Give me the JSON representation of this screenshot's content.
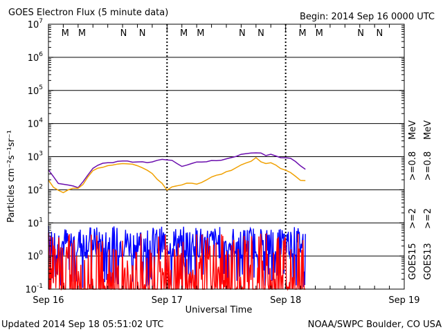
{
  "chart_data": {
    "type": "line",
    "title": "GOES Electron Flux (5 minute data)",
    "begin_label": "Begin: 2014 Sep 16 0000 UTC",
    "ylabel": "Particles cm⁻²s⁻¹sr⁻¹",
    "xlabel": "Universal Time",
    "updated": "Updated 2014 Sep 18 05:51:02 UTC",
    "credit": "NOAA/SWPC Boulder, CO USA",
    "y_scale": "log",
    "ylim": [
      0.1,
      10000000
    ],
    "xlim_hours": [
      0,
      72
    ],
    "x_tick_labels": [
      {
        "hour": 0,
        "label": "Sep 16"
      },
      {
        "hour": 24,
        "label": "Sep 17"
      },
      {
        "hour": 48,
        "label": "Sep 18"
      },
      {
        "hour": 72,
        "label": "Sep 19"
      }
    ],
    "y_ticks": [
      {
        "exp": -1,
        "base": "10",
        "sup": "-1"
      },
      {
        "exp": 0,
        "base": "10",
        "sup": "0"
      },
      {
        "exp": 1,
        "base": "10",
        "sup": "1"
      },
      {
        "exp": 2,
        "base": "10",
        "sup": "2"
      },
      {
        "exp": 3,
        "base": "10",
        "sup": "3"
      },
      {
        "exp": 4,
        "base": "10",
        "sup": "4"
      },
      {
        "exp": 5,
        "base": "10",
        "sup": "5"
      },
      {
        "exp": 6,
        "base": "10",
        "sup": "6"
      },
      {
        "exp": 7,
        "base": "10",
        "sup": "7"
      }
    ],
    "grid_lines": [
      1,
      10,
      100,
      1000,
      10000,
      100000,
      1000000
    ],
    "threshold": {
      "value": 1000,
      "style": "dashed"
    },
    "markers": [
      {
        "hour": 3.4,
        "label": "M",
        "color": "#e00000"
      },
      {
        "hour": 6.8,
        "label": "M",
        "color": "#0000e0"
      },
      {
        "hour": 15.2,
        "label": "N",
        "color": "#e00000"
      },
      {
        "hour": 19.0,
        "label": "N",
        "color": "#0000e0"
      },
      {
        "hour": 27.4,
        "label": "M",
        "color": "#e00000"
      },
      {
        "hour": 30.8,
        "label": "M",
        "color": "#0000e0"
      },
      {
        "hour": 39.2,
        "label": "N",
        "color": "#e00000"
      },
      {
        "hour": 43.0,
        "label": "N",
        "color": "#0000e0"
      },
      {
        "hour": 51.4,
        "label": "M",
        "color": "#e00000"
      },
      {
        "hour": 54.8,
        "label": "M",
        "color": "#0000e0"
      },
      {
        "hour": 63.2,
        "label": "N",
        "color": "#e00000"
      },
      {
        "hour": 67.0,
        "label": "N",
        "color": "#0000e0"
      }
    ],
    "noon_dotted_hours": [
      24,
      48
    ],
    "series": [
      {
        "name": ">=0.8 MeV (GOES15)",
        "color": "#6a0dad",
        "values_hours": [
          0,
          1,
          2,
          3,
          4,
          5,
          6,
          7,
          8,
          9,
          10,
          11,
          12,
          13,
          14,
          15,
          16,
          17,
          18,
          19,
          20,
          21,
          22,
          23,
          24,
          25,
          26,
          27,
          28,
          29,
          30,
          31,
          32,
          33,
          34,
          35,
          36,
          37,
          38,
          39,
          40,
          41,
          42,
          43,
          44,
          45,
          46,
          47,
          48,
          49,
          50,
          51,
          52
        ],
        "values": [
          400,
          250,
          160,
          150,
          140,
          130,
          120,
          170,
          280,
          450,
          560,
          620,
          650,
          680,
          720,
          760,
          730,
          700,
          690,
          700,
          680,
          720,
          750,
          800,
          820,
          780,
          600,
          520,
          560,
          620,
          680,
          700,
          720,
          740,
          760,
          800,
          860,
          950,
          1050,
          1150,
          1250,
          1300,
          1350,
          1250,
          1100,
          1150,
          1050,
          950,
          920,
          900,
          700,
          520,
          430
        ]
      },
      {
        "name": ">=0.8 MeV (GOES13)",
        "color": "#f0a000",
        "values_hours": [
          0,
          1,
          2,
          3,
          4,
          5,
          6,
          7,
          8,
          9,
          10,
          11,
          12,
          13,
          14,
          15,
          16,
          17,
          18,
          19,
          20,
          21,
          22,
          23,
          24,
          25,
          26,
          27,
          28,
          29,
          30,
          31,
          32,
          33,
          34,
          35,
          36,
          37,
          38,
          39,
          40,
          41,
          42,
          43,
          44,
          45,
          46,
          47,
          48,
          49,
          50,
          51,
          52
        ],
        "values": [
          200,
          120,
          100,
          85,
          100,
          110,
          110,
          140,
          250,
          380,
          450,
          480,
          520,
          560,
          600,
          630,
          620,
          580,
          550,
          470,
          380,
          300,
          200,
          150,
          95,
          120,
          130,
          140,
          165,
          160,
          150,
          170,
          200,
          240,
          270,
          300,
          340,
          400,
          470,
          560,
          650,
          750,
          900,
          700,
          600,
          650,
          560,
          450,
          380,
          320,
          260,
          200,
          195
        ]
      },
      {
        "name": ">=2 MeV (GOES15)",
        "color": "#0000ff",
        "values_hours": [
          0,
          52
        ],
        "values": [
          3,
          3
        ],
        "range": [
          0.1,
          8
        ]
      },
      {
        "name": ">=2 MeV (GOES13)",
        "color": "#ff0000",
        "values_hours": [
          0,
          52
        ],
        "values": [
          1,
          1
        ],
        "range": [
          0.1,
          5
        ]
      }
    ],
    "legend": [
      {
        "text": ">=2",
        "color": "#0000ff"
      },
      {
        "text": ">=0.8",
        "color": "#6a0dad"
      },
      {
        "text": "MeV",
        "color": "#000000"
      },
      {
        "text": ">=2",
        "color": "#ff0000"
      },
      {
        "text": ">=0.8",
        "color": "#f0a000"
      },
      {
        "text": "MeV",
        "color": "#000000"
      },
      {
        "text": "GOES15",
        "color": "#000000"
      },
      {
        "text": "GOES13",
        "color": "#000000"
      }
    ]
  }
}
